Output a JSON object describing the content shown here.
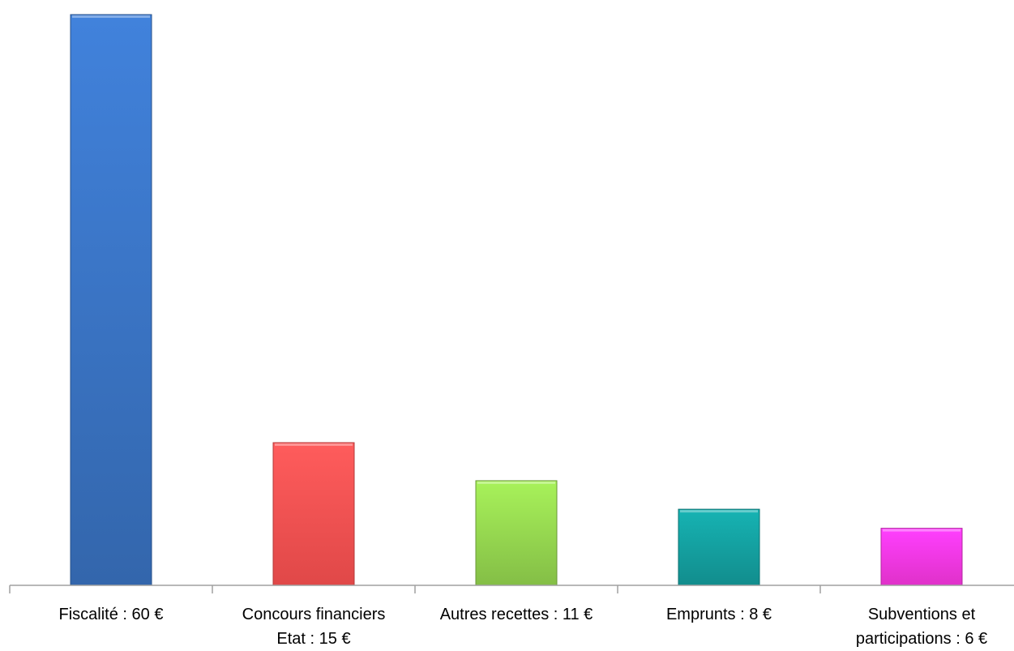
{
  "chart_data": {
    "type": "bar",
    "title": "",
    "xlabel": "",
    "ylabel": "",
    "ylim": [
      0,
      60
    ],
    "grid": false,
    "legend": "none",
    "categories": [
      [
        "Fiscalité : 60 €"
      ],
      [
        "Concours financiers",
        "Etat : 15 €"
      ],
      [
        "Autres recettes : 11 €"
      ],
      [
        "Emprunts : 8 €"
      ],
      [
        "Subventions et",
        "participations : 6 €"
      ]
    ],
    "values": [
      60,
      15,
      11,
      8,
      6
    ],
    "colors": [
      "#3a74c4",
      "#ff5252",
      "#96d850",
      "#14a0a0",
      "#ff38e4"
    ]
  }
}
